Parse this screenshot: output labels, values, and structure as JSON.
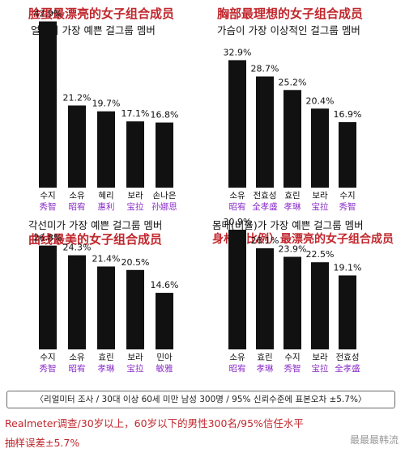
{
  "colors": {
    "bar": "#111111",
    "accent": "#c1272d",
    "cn_label": "#8b2fc9",
    "text": "#111111"
  },
  "chart_data": [
    {
      "type": "bar",
      "title_cn": "脸蛋最漂亮的女子组合成员",
      "title_ko": "얼굴이 가장 예쁜 걸그룹 멤버",
      "categories": [
        "수지",
        "소유",
        "혜리",
        "보라",
        "손나은"
      ],
      "categories_cn": [
        "秀智",
        "昭宥",
        "惠利",
        "宝拉",
        "孙娜恩"
      ],
      "values": [
        42.9,
        21.2,
        19.7,
        17.1,
        16.8
      ],
      "value_labels": [
        "42.9%",
        "21.2%",
        "19.7%",
        "17.1%",
        "16.8%"
      ]
    },
    {
      "type": "bar",
      "title_cn": "胸部最理想的女子组合成员",
      "title_ko": "가슴이 가장 이상적인 걸그룹 멤버",
      "categories": [
        "소유",
        "전효성",
        "효린",
        "보라",
        "수지"
      ],
      "categories_cn": [
        "昭宥",
        "全孝盛",
        "孝琳",
        "宝拉",
        "秀智"
      ],
      "values": [
        32.9,
        28.7,
        25.2,
        20.4,
        16.9
      ],
      "value_labels": [
        "32.9%",
        "28.7%",
        "25.2%",
        "20.4%",
        "16.9%"
      ]
    },
    {
      "type": "bar",
      "title_cn": "曲线最美的女子组合成员",
      "title_ko": "각선미가 가장 예쁜 걸그룹 멤버",
      "categories": [
        "수지",
        "소유",
        "효린",
        "보라",
        "민아"
      ],
      "categories_cn": [
        "秀智",
        "昭宥",
        "孝琳",
        "宝拉",
        "敏雅"
      ],
      "values": [
        26.8,
        24.3,
        21.4,
        20.5,
        14.6
      ],
      "value_labels": [
        "26.8%",
        "24.3%",
        "21.4%",
        "20.5%",
        "14.6%"
      ]
    },
    {
      "type": "bar",
      "title_cn": "身材（比例）最漂亮的女子组合成员",
      "title_ko": "몸매(비율)가 가장 예쁜 걸그룹 멤버",
      "categories": [
        "소유",
        "효린",
        "수지",
        "보라",
        "전효성"
      ],
      "categories_cn": [
        "昭宥",
        "孝琳",
        "秀智",
        "宝拉",
        "全孝盛"
      ],
      "values": [
        30.9,
        26.1,
        23.9,
        22.5,
        19.1
      ],
      "value_labels": [
        "30.9%",
        "26.1%",
        "23.9%",
        "22.5%",
        "19.1%"
      ]
    }
  ],
  "source_note": "〈리얼미터 조사 / 30대 이상 60세 미만 남성 300명 / 95% 신뢰수준에 표본오차 ±5.7%〉",
  "footnote_line1": "Realmeter调查/30岁以上，60岁以下的男性300名/95%信任水平",
  "footnote_line2": "抽样误差±5.7%",
  "watermark": "最最最韩流"
}
